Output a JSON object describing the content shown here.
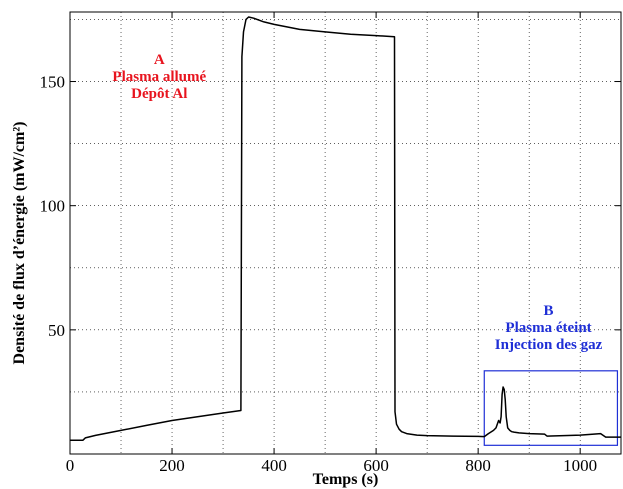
{
  "chart_data": {
    "type": "line",
    "title": "",
    "xlabel": "Temps (s)",
    "ylabel": "Densité de flux d’énergie (mW/cm²)",
    "xlim": [
      0,
      1080
    ],
    "ylim": [
      0,
      178
    ],
    "xticks": [
      0,
      200,
      400,
      600,
      800,
      1000
    ],
    "yticks": [
      50,
      100,
      150
    ],
    "grid": true,
    "series": [
      {
        "color": "#000000",
        "x": [
          0,
          25,
          30,
          50,
          100,
          150,
          200,
          250,
          300,
          335,
          337,
          340,
          345,
          350,
          360,
          380,
          400,
          450,
          500,
          550,
          600,
          636,
          637,
          640,
          645,
          650,
          660,
          680,
          700,
          750,
          800,
          812,
          820,
          830,
          835,
          840,
          843,
          845,
          847,
          849,
          851,
          853,
          855,
          858,
          862,
          866,
          870,
          880,
          900,
          930,
          935,
          1000,
          1040,
          1050,
          1080
        ],
        "y": [
          5.5,
          5.5,
          6.5,
          7.5,
          9.5,
          11.5,
          13.5,
          15,
          16.5,
          17.5,
          160,
          170,
          175,
          176,
          175.5,
          174,
          173,
          171,
          170,
          169,
          168.5,
          168,
          17,
          12,
          10,
          9,
          8.2,
          7.6,
          7.4,
          7.2,
          7.1,
          7.0,
          8.2,
          9.5,
          10.5,
          13.5,
          12.5,
          15,
          24,
          27,
          26,
          22,
          15,
          10.5,
          9.5,
          9,
          8.8,
          8.5,
          8.2,
          8.0,
          7.2,
          7.6,
          8.2,
          6.8,
          6.8
        ]
      }
    ],
    "annotations": [
      {
        "lines": [
          "A",
          "Plasma allumé",
          "Dépôt Al"
        ],
        "color": "#e8141e",
        "x": 175,
        "y": 157
      },
      {
        "lines": [
          "B",
          "Plasma éteint",
          "Injection des gaz"
        ],
        "color": "#1f2fd6",
        "x": 938,
        "y": 56
      }
    ],
    "highlight_box": {
      "color": "#1f2fd6",
      "x": [
        812,
        1073
      ],
      "y": [
        3.5,
        33.5
      ]
    }
  }
}
